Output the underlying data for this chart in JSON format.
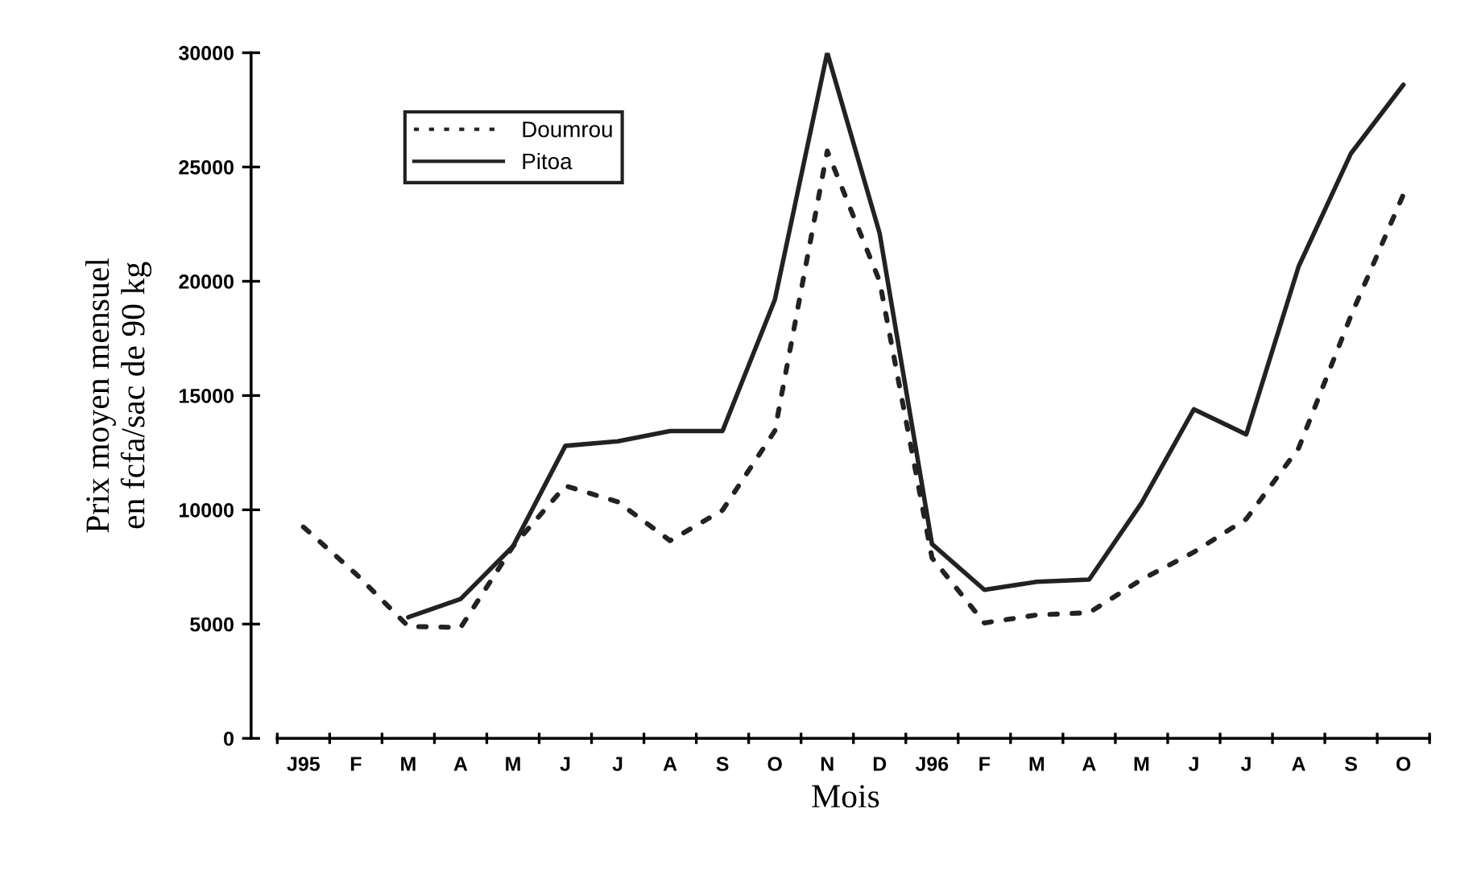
{
  "chart_data": {
    "type": "line",
    "xlabel": "Mois",
    "ylabel": "Prix moyen mensuel\nen fcfa/sac de 90 kg",
    "categories": [
      "J95",
      "F",
      "M",
      "A",
      "M",
      "J",
      "J",
      "A",
      "S",
      "O",
      "N",
      "D",
      "J96",
      "F",
      "M",
      "A",
      "M",
      "J",
      "J",
      "A",
      "S",
      "O"
    ],
    "series": [
      {
        "name": "Doumrou",
        "color": "#222222",
        "line_style": "dotted",
        "values": [
          9250,
          7200,
          4900,
          4850,
          8400,
          11050,
          10350,
          8650,
          9980,
          13460,
          25700,
          20000,
          7900,
          5050,
          5400,
          5500,
          6950,
          8150,
          9600,
          12700,
          18500,
          23800
        ]
      },
      {
        "name": "Pitoa",
        "color": "#222222",
        "line_style": "solid",
        "values": [
          null,
          null,
          5300,
          6100,
          8400,
          12800,
          13000,
          13450,
          13450,
          19200,
          30000,
          22100,
          8500,
          6500,
          6850,
          6950,
          10300,
          14400,
          13300,
          20650,
          25600,
          28600
        ]
      }
    ],
    "ylim": [
      0,
      30000
    ],
    "yticks": [
      0,
      5000,
      10000,
      15000,
      20000,
      25000,
      30000
    ],
    "grid": false,
    "legend": "top left",
    "marker": "none"
  }
}
